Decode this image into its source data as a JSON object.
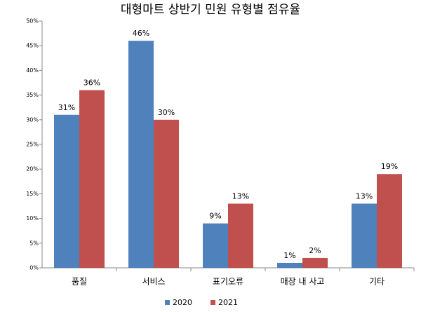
{
  "chart_data": {
    "type": "bar",
    "title": "대형마트 상반기 민원 유형별 점유율",
    "categories": [
      "품질",
      "서비스",
      "표기오류",
      "매장 내 사고",
      "기타"
    ],
    "series": [
      {
        "name": "2020",
        "color": "#4f81bd",
        "values": [
          31,
          46,
          9,
          1,
          13
        ],
        "value_labels": [
          "31%",
          "46%",
          "9%",
          "1%",
          "13%"
        ]
      },
      {
        "name": "2021",
        "color": "#c0504d",
        "values": [
          36,
          30,
          13,
          2,
          19
        ],
        "value_labels": [
          "36%",
          "30%",
          "13%",
          "2%",
          "19%"
        ]
      }
    ],
    "ylim": [
      0,
      50
    ],
    "yticks": [
      {
        "value": 0,
        "label": "0%"
      },
      {
        "value": 5,
        "label": "5%"
      },
      {
        "value": 10,
        "label": "10%"
      },
      {
        "value": 15,
        "label": "15%"
      },
      {
        "value": 20,
        "label": "20%"
      },
      {
        "value": 25,
        "label": "25%"
      },
      {
        "value": 30,
        "label": "30%"
      },
      {
        "value": 35,
        "label": "35%"
      },
      {
        "value": 40,
        "label": "40%"
      },
      {
        "value": 45,
        "label": "45%"
      },
      {
        "value": 50,
        "label": "50%"
      }
    ],
    "grid": false,
    "legend": "bottom"
  }
}
